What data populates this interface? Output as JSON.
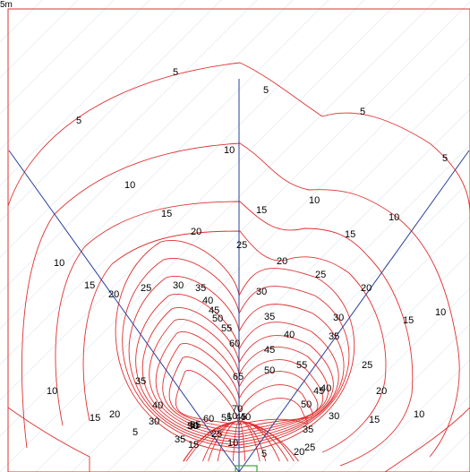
{
  "top_edge_text": "5m",
  "colors": {
    "contour": "#e03030",
    "line": "#2a3f9a",
    "frame": "#e03030",
    "marker": "#33aa33",
    "grid": "#c8d8e8"
  },
  "contour_labels": [
    "5",
    "5",
    "5",
    "5",
    "5",
    "5",
    "5",
    "10",
    "10",
    "10",
    "10",
    "10",
    "10",
    "10",
    "10",
    "10",
    "10",
    "15",
    "15",
    "15",
    "15",
    "15",
    "15",
    "15",
    "15",
    "20",
    "20",
    "20",
    "20",
    "20",
    "20",
    "20",
    "25",
    "25",
    "25",
    "25",
    "25",
    "25",
    "30",
    "30",
    "30",
    "30",
    "30",
    "30",
    "35",
    "35",
    "35",
    "35",
    "35",
    "35",
    "40",
    "40",
    "40",
    "40",
    "40",
    "45",
    "45",
    "45",
    "45",
    "50",
    "50",
    "50",
    "50",
    "55",
    "55",
    "55",
    "55",
    "60",
    "60",
    "65",
    "70"
  ]
}
